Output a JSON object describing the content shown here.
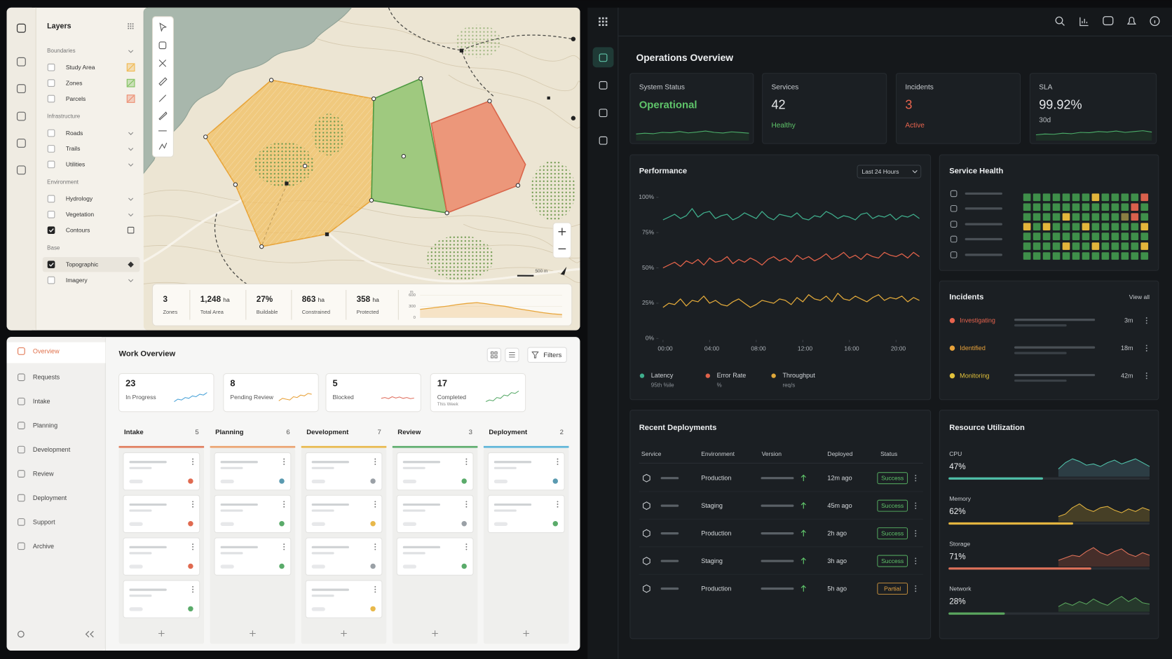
{
  "map": {
    "title": "Layers",
    "groups": [
      {
        "name": "Boundaries",
        "layers": [
          {
            "label": "Study Area",
            "checked": false,
            "swatch": "#f0b64a"
          },
          {
            "label": "Zones",
            "checked": false,
            "swatch": "#7cbf5a"
          },
          {
            "label": "Parcels",
            "checked": false,
            "swatch": "#ec8a6e"
          }
        ]
      },
      {
        "name": "Infrastructure",
        "layers": [
          {
            "label": "Roads",
            "checked": false
          },
          {
            "label": "Trails",
            "checked": false
          },
          {
            "label": "Utilities",
            "checked": false
          }
        ]
      },
      {
        "name": "Environment",
        "layers": [
          {
            "label": "Hydrology",
            "checked": false
          },
          {
            "label": "Vegetation",
            "checked": false
          },
          {
            "label": "Contours",
            "checked": true
          }
        ]
      },
      {
        "name": "Base",
        "layers": [
          {
            "label": "Topographic",
            "checked": true,
            "active": true
          },
          {
            "label": "Imagery",
            "checked": false
          }
        ]
      }
    ],
    "scale_label": "500 m",
    "stats": [
      {
        "value": "3",
        "label": "Zones"
      },
      {
        "value": "1,248",
        "unit": "ha",
        "label": "Total Area"
      },
      {
        "value": "27%",
        "label": "Buildable"
      },
      {
        "value": "863",
        "unit": "ha",
        "label": "Constrained"
      },
      {
        "value": "358",
        "unit": "ha",
        "label": "Protected"
      }
    ],
    "profile": {
      "type": "area",
      "unit": "m",
      "color": "#e8a53a",
      "ylim": [
        0,
        600
      ],
      "yticks": [
        0,
        300,
        600
      ],
      "values": [
        220,
        250,
        280,
        310,
        350,
        380,
        400,
        370,
        330,
        300,
        250,
        210,
        170,
        130,
        100,
        80
      ]
    }
  },
  "work": {
    "nav": [
      "Overview",
      "Requests",
      "Intake",
      "Planning",
      "Development",
      "Review",
      "Deployment",
      "Support",
      "Archive"
    ],
    "title": "Work Overview",
    "filters": "Filters",
    "spark_ylim": [
      0,
      100
    ],
    "stats": [
      {
        "value": "23",
        "label": "In Progress",
        "color": "#4aa3d8",
        "spark": [
          20,
          35,
          30,
          45,
          40,
          55,
          50,
          65,
          60,
          75
        ]
      },
      {
        "value": "8",
        "label": "Pending Review",
        "color": "#e8a23a",
        "spark": [
          25,
          40,
          35,
          30,
          50,
          45,
          60,
          55,
          70,
          65
        ]
      },
      {
        "value": "5",
        "label": "Blocked",
        "color": "#e07060",
        "spark": [
          40,
          45,
          38,
          50,
          42,
          48,
          40,
          45,
          38,
          42
        ]
      },
      {
        "value": "17",
        "label": "Completed",
        "sublabel": "This Week",
        "color": "#5aab6a",
        "spark": [
          20,
          30,
          25,
          45,
          40,
          60,
          55,
          75,
          70,
          85
        ]
      }
    ],
    "columns": [
      {
        "name": "Intake",
        "count": "5",
        "color": "#e07b5a",
        "cards": [
          {
            "dot": "#e06a50"
          },
          {
            "dot": "#e06a50"
          },
          {
            "dot": "#e06a50"
          },
          {
            "dot": "#5aab6a"
          }
        ]
      },
      {
        "name": "Planning",
        "count": "6",
        "color": "#eba26e",
        "cards": [
          {
            "dot": "#5a9ab0"
          },
          {
            "dot": "#5aab6a"
          },
          {
            "dot": "#5aab6a"
          }
        ]
      },
      {
        "name": "Development",
        "count": "7",
        "color": "#e8b84a",
        "cards": [
          {
            "dot": "#9aa0a6"
          },
          {
            "dot": "#e8b84a"
          },
          {
            "dot": "#9aa0a6"
          },
          {
            "dot": "#e8b84a"
          }
        ]
      },
      {
        "name": "Review",
        "count": "3",
        "color": "#5aab6a",
        "cards": [
          {
            "dot": "#5aab6a"
          },
          {
            "dot": "#9aa0a6"
          },
          {
            "dot": "#5aab6a"
          }
        ]
      },
      {
        "name": "Deployment",
        "count": "2",
        "color": "#5ab4d8",
        "cards": [
          {
            "dot": "#5a9ab0"
          },
          {
            "dot": "#5aab6a"
          }
        ]
      }
    ]
  },
  "dashboard": {
    "title": "Operations Overview",
    "spark_ylim": [
      0,
      100
    ],
    "kpis": [
      {
        "label": "System Status",
        "value": "Operational",
        "value_color": "#5fc46a",
        "spark": [
          40,
          45,
          42,
          50,
          48,
          55,
          47,
          52,
          58,
          50,
          46,
          53,
          49,
          45
        ],
        "spark_color": "#4caf6a"
      },
      {
        "label": "Services",
        "value": "42",
        "value_color": "#e6e8ea",
        "sub": "Healthy",
        "sub_color": "#5fc46a"
      },
      {
        "label": "Incidents",
        "value": "3",
        "value_color": "#e8644e",
        "sub": "Active",
        "sub_color": "#e8644e"
      },
      {
        "label": "SLA",
        "value": "99.92%",
        "value_color": "#e6e8ea",
        "sub": "30d",
        "sub_color": "#b8bcc0",
        "spark": [
          35,
          40,
          38,
          45,
          42,
          50,
          48,
          55,
          52,
          58,
          50,
          55,
          60,
          52
        ],
        "spark_color": "#4caf6a"
      }
    ],
    "performance": {
      "type": "line",
      "title": "Performance",
      "range": "Last 24 Hours",
      "x": [
        0,
        0.5,
        1,
        1.5,
        2,
        2.5,
        3,
        3.5,
        4,
        4.5,
        5,
        5.5,
        6,
        6.5,
        7,
        7.5,
        8,
        8.5,
        9,
        9.5,
        10,
        10.5,
        11,
        11.5,
        12,
        12.5,
        13,
        13.5,
        14,
        14.5,
        15,
        15.5,
        16,
        16.5,
        17,
        17.5,
        18,
        18.5,
        19,
        19.5,
        20,
        20.5,
        21,
        21.5,
        22
      ],
      "xlim": [
        0,
        22
      ],
      "xticks": [
        {
          "value": 0,
          "label": "00:00"
        },
        {
          "value": 4,
          "label": "04:00"
        },
        {
          "value": 8,
          "label": "08:00"
        },
        {
          "value": 12,
          "label": "12:00"
        },
        {
          "value": 16,
          "label": "16:00"
        },
        {
          "value": 20,
          "label": "20:00"
        }
      ],
      "ylim": [
        0,
        100
      ],
      "yticks": [
        {
          "value": 100,
          "label": "100%"
        },
        {
          "value": 75,
          "label": "75%"
        },
        {
          "value": 50,
          "label": "50%"
        },
        {
          "value": 25,
          "label": "25%"
        },
        {
          "value": 0,
          "label": "0%"
        }
      ],
      "series": [
        {
          "name": "Latency",
          "sub": "95th %ile",
          "color": "#3fae8c",
          "values": [
            84,
            86,
            88,
            85,
            87,
            92,
            86,
            89,
            90,
            85,
            87,
            88,
            84,
            86,
            89,
            87,
            85,
            90,
            86,
            84,
            88,
            87,
            86,
            89,
            85,
            84,
            87,
            86,
            90,
            88,
            85,
            87,
            86,
            84,
            88,
            89,
            85,
            87,
            86,
            88,
            84,
            87,
            86,
            88,
            85
          ]
        },
        {
          "name": "Error Rate",
          "sub": "%",
          "color": "#e0624a",
          "values": [
            50,
            52,
            54,
            51,
            55,
            53,
            56,
            52,
            57,
            54,
            55,
            58,
            53,
            56,
            54,
            57,
            55,
            52,
            56,
            58,
            55,
            57,
            54,
            59,
            56,
            58,
            55,
            57,
            60,
            56,
            58,
            61,
            57,
            59,
            56,
            60,
            58,
            57,
            61,
            59,
            58,
            60,
            57,
            61,
            58
          ]
        },
        {
          "name": "Throughput",
          "sub": "req/s",
          "color": "#e0a83a",
          "values": [
            22,
            25,
            24,
            28,
            23,
            27,
            26,
            30,
            25,
            27,
            24,
            23,
            26,
            28,
            25,
            22,
            24,
            27,
            26,
            25,
            28,
            27,
            24,
            29,
            26,
            31,
            28,
            27,
            30,
            26,
            32,
            28,
            27,
            30,
            28,
            26,
            29,
            31,
            27,
            29,
            28,
            30,
            26,
            29,
            27
          ]
        }
      ]
    },
    "service_health": {
      "title": "Service Health",
      "colors": [
        "#3f8f4a",
        "#e3b53b",
        "#d9604c",
        "#8a7e42"
      ],
      "rows": [
        [
          0,
          0,
          0,
          0,
          0,
          0,
          0,
          1,
          0,
          0,
          0,
          0,
          2
        ],
        [
          0,
          0,
          0,
          0,
          0,
          0,
          0,
          0,
          0,
          0,
          0,
          2,
          0
        ],
        [
          0,
          0,
          0,
          0,
          1,
          0,
          0,
          0,
          0,
          0,
          3,
          2,
          0
        ],
        [
          1,
          0,
          1,
          0,
          0,
          0,
          1,
          0,
          0,
          0,
          0,
          0,
          1
        ],
        [
          0,
          0,
          0,
          0,
          0,
          0,
          0,
          0,
          0,
          0,
          0,
          0,
          0
        ],
        [
          0,
          0,
          0,
          0,
          1,
          0,
          0,
          1,
          0,
          0,
          0,
          0,
          1
        ],
        [
          0,
          0,
          0,
          0,
          0,
          0,
          0,
          0,
          0,
          0,
          0,
          0,
          0
        ]
      ]
    },
    "incidents": {
      "title": "Incidents",
      "action": "View all",
      "items": [
        {
          "status": "Investigating",
          "color": "#e8644e",
          "age": "3m"
        },
        {
          "status": "Identified",
          "color": "#e8a23a",
          "age": "18m"
        },
        {
          "status": "Monitoring",
          "color": "#e3c23b",
          "age": "42m"
        }
      ]
    },
    "deployments": {
      "title": "Recent Deployments",
      "columns": [
        "Service",
        "Environment",
        "Version",
        "Deployed",
        "Status"
      ],
      "rows": [
        {
          "environment": "Production",
          "deployed": "12m ago",
          "status": "Success",
          "status_color": "#5fc46a"
        },
        {
          "environment": "Staging",
          "deployed": "45m ago",
          "status": "Success",
          "status_color": "#5fc46a"
        },
        {
          "environment": "Production",
          "deployed": "2h ago",
          "status": "Success",
          "status_color": "#5fc46a"
        },
        {
          "environment": "Staging",
          "deployed": "3h ago",
          "status": "Success",
          "status_color": "#5fc46a"
        },
        {
          "environment": "Production",
          "deployed": "5h ago",
          "status": "Partial",
          "status_color": "#e0a040"
        }
      ]
    },
    "resources": {
      "title": "Resource Utilization",
      "xlim": [
        0,
        100
      ],
      "spark_ylim": [
        0,
        100
      ],
      "items": [
        {
          "name": "CPU",
          "value": {
            "value": 47,
            "label": "47%"
          },
          "color": "#4fbfa8",
          "area": "#3b5560",
          "spark": [
            30,
            55,
            70,
            60,
            45,
            50,
            40,
            55,
            65,
            50,
            60,
            70,
            55,
            40
          ]
        },
        {
          "name": "Memory",
          "value": {
            "value": 62,
            "label": "62%"
          },
          "color": "#e3b43f",
          "area": "#6a5a2a",
          "spark": [
            20,
            30,
            55,
            70,
            50,
            40,
            55,
            60,
            45,
            35,
            50,
            40,
            55,
            45
          ]
        },
        {
          "name": "Storage",
          "value": {
            "value": 71,
            "label": "71%"
          },
          "color": "#e0725a",
          "area": "#6a3a32",
          "spark": [
            25,
            35,
            45,
            40,
            60,
            75,
            55,
            45,
            60,
            70,
            50,
            40,
            55,
            45
          ]
        },
        {
          "name": "Network",
          "value": {
            "value": 28,
            "label": "28%"
          },
          "color": "#5aa65e",
          "area": "#2f4f34",
          "spark": [
            20,
            35,
            25,
            40,
            30,
            50,
            35,
            25,
            45,
            60,
            40,
            55,
            35,
            30
          ]
        }
      ]
    }
  }
}
